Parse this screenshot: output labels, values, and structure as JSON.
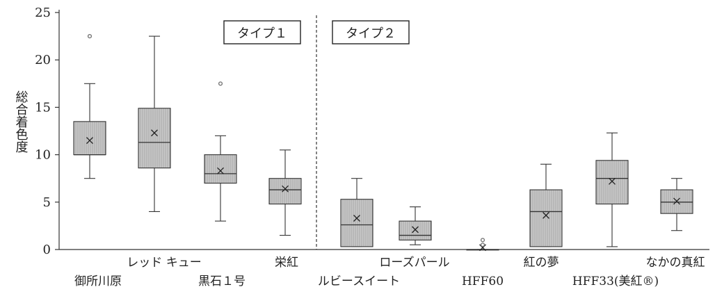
{
  "chart_data": {
    "type": "box",
    "ylabel": "総合着色度",
    "ylim": [
      0,
      25
    ],
    "yticks": [
      0,
      5,
      10,
      15,
      20,
      25
    ],
    "grid": false,
    "groups": [
      {
        "label": "タイプ１"
      },
      {
        "label": "タイプ２"
      }
    ],
    "categories": [
      "御所川原",
      "レッド キュー",
      "黒石１号",
      "栄紅",
      "ルビースイート",
      "ローズパール",
      "HFF60",
      "紅の夢",
      "HFF33(美紅®)",
      "なかの真紅"
    ],
    "boxes": [
      {
        "name": "御所川原",
        "group": 1,
        "min": 7.5,
        "q1": 10.0,
        "median": 10.0,
        "q3": 13.5,
        "max": 17.5,
        "mean": 11.5,
        "outliers": [
          22.5
        ]
      },
      {
        "name": "レッド キュー",
        "group": 1,
        "min": 4.0,
        "q1": 8.6,
        "median": 11.3,
        "q3": 14.9,
        "max": 22.5,
        "mean": 12.3,
        "outliers": []
      },
      {
        "name": "黒石１号",
        "group": 1,
        "min": 3.0,
        "q1": 7.0,
        "median": 8.0,
        "q3": 10.0,
        "max": 12.0,
        "mean": 8.3,
        "outliers": [
          17.5
        ]
      },
      {
        "name": "栄紅",
        "group": 1,
        "min": 1.5,
        "q1": 4.8,
        "median": 6.3,
        "q3": 7.5,
        "max": 10.5,
        "mean": 6.4,
        "outliers": []
      },
      {
        "name": "ルビースイート",
        "group": 2,
        "min": 0.3,
        "q1": 0.3,
        "median": 2.6,
        "q3": 5.3,
        "max": 7.5,
        "mean": 3.3,
        "outliers": []
      },
      {
        "name": "ローズパール",
        "group": 2,
        "min": 0.5,
        "q1": 1.0,
        "median": 1.5,
        "q3": 3.0,
        "max": 4.5,
        "mean": 2.1,
        "outliers": []
      },
      {
        "name": "HFF60",
        "group": 2,
        "min": 0.0,
        "q1": 0.0,
        "median": 0.0,
        "q3": 0.0,
        "max": 0.0,
        "mean": 0.2,
        "outliers": [
          1.0,
          0.5
        ]
      },
      {
        "name": "紅の夢",
        "group": 2,
        "min": 0.3,
        "q1": 0.3,
        "median": 4.0,
        "q3": 6.3,
        "max": 9.0,
        "mean": 3.6,
        "outliers": []
      },
      {
        "name": "HFF33(美紅®)",
        "group": 2,
        "min": 0.3,
        "q1": 4.8,
        "median": 7.5,
        "q3": 9.4,
        "max": 12.3,
        "mean": 7.2,
        "outliers": []
      },
      {
        "name": "なかの真紅",
        "group": 2,
        "min": 2.0,
        "q1": 3.8,
        "median": 5.0,
        "q3": 6.3,
        "max": 7.5,
        "mean": 5.1,
        "outliers": []
      }
    ],
    "colors": {
      "box_fill": "#c8c8c8",
      "box_hatch": "#a8a8a8",
      "stroke": "#333333",
      "outlier": "#777777"
    }
  }
}
